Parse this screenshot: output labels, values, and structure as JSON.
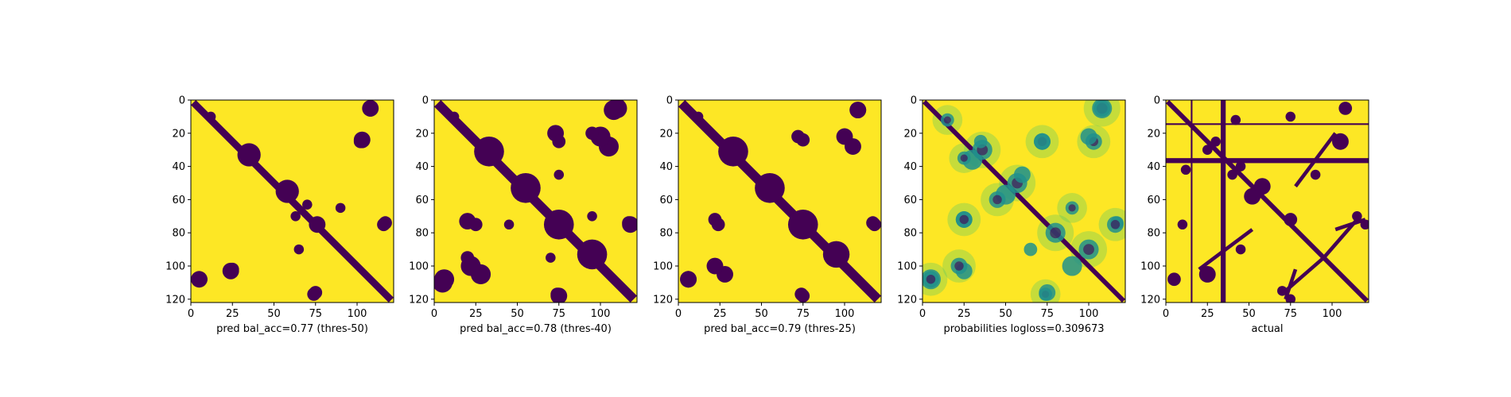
{
  "colors": {
    "low": "#440154",
    "high": "#fde725",
    "mid_teal": "#21918c",
    "mid_green": "#5ec962",
    "frame": "#000000"
  },
  "chart_data": [
    {
      "type": "heatmap",
      "colormap": "viridis",
      "xlabel": "pred bal_acc=0.77 (thres-50)",
      "xticks": [
        0,
        25,
        50,
        75,
        100
      ],
      "yticks": [
        0,
        20,
        40,
        60,
        80,
        100,
        120
      ],
      "xlim": [
        0,
        122
      ],
      "ylim": [
        122,
        0
      ],
      "matrix_size": 122,
      "diagonal_band_halfwidth": 3,
      "blobs": [
        {
          "x": 35,
          "y": 33,
          "r": 7
        },
        {
          "x": 58,
          "y": 55,
          "r": 7
        },
        {
          "x": 76,
          "y": 75,
          "r": 5
        },
        {
          "x": 108,
          "y": 5,
          "r": 5
        },
        {
          "x": 103,
          "y": 24,
          "r": 5
        },
        {
          "x": 25,
          "y": 102,
          "r": 4
        },
        {
          "x": 6,
          "y": 108,
          "r": 4
        },
        {
          "x": 74,
          "y": 117,
          "r": 4
        },
        {
          "x": 116,
          "y": 75,
          "r": 4
        },
        {
          "x": 90,
          "y": 65,
          "r": 3
        },
        {
          "x": 12,
          "y": 10,
          "r": 3
        },
        {
          "x": 70,
          "y": 63,
          "r": 3
        }
      ]
    },
    {
      "type": "heatmap",
      "colormap": "viridis",
      "xlabel": "pred bal_acc=0.78 (thres-40)",
      "xticks": [
        0,
        25,
        50,
        75,
        100
      ],
      "yticks": [
        0,
        20,
        40,
        60,
        80,
        100,
        120
      ],
      "xlim": [
        0,
        122
      ],
      "ylim": [
        122,
        0
      ],
      "matrix_size": 122,
      "diagonal_band_halfwidth": 4,
      "blobs": [
        {
          "x": 33,
          "y": 31,
          "r": 9
        },
        {
          "x": 55,
          "y": 53,
          "r": 9
        },
        {
          "x": 75,
          "y": 75,
          "r": 9
        },
        {
          "x": 95,
          "y": 93,
          "r": 9
        },
        {
          "x": 108,
          "y": 6,
          "r": 6
        },
        {
          "x": 105,
          "y": 28,
          "r": 6
        },
        {
          "x": 22,
          "y": 100,
          "r": 6
        },
        {
          "x": 5,
          "y": 110,
          "r": 6
        },
        {
          "x": 74,
          "y": 117,
          "r": 4
        },
        {
          "x": 118,
          "y": 75,
          "r": 5
        },
        {
          "x": 73,
          "y": 20,
          "r": 5
        },
        {
          "x": 95,
          "y": 20,
          "r": 4
        },
        {
          "x": 25,
          "y": 75,
          "r": 4
        },
        {
          "x": 75,
          "y": 45,
          "r": 3
        },
        {
          "x": 12,
          "y": 10,
          "r": 3
        },
        {
          "x": 70,
          "y": 95,
          "r": 3
        }
      ]
    },
    {
      "type": "heatmap",
      "colormap": "viridis",
      "xlabel": "pred bal_acc=0.79 (thres-25)",
      "xticks": [
        0,
        25,
        50,
        75,
        100
      ],
      "yticks": [
        0,
        20,
        40,
        60,
        80,
        100,
        120
      ],
      "xlim": [
        0,
        122
      ],
      "ylim": [
        122,
        0
      ],
      "matrix_size": 122,
      "diagonal_band_halfwidth": 4,
      "blobs": [
        {
          "x": 33,
          "y": 31,
          "r": 9
        },
        {
          "x": 55,
          "y": 53,
          "r": 9
        },
        {
          "x": 75,
          "y": 75,
          "r": 9
        },
        {
          "x": 95,
          "y": 93,
          "r": 8
        },
        {
          "x": 108,
          "y": 6,
          "r": 5
        },
        {
          "x": 105,
          "y": 28,
          "r": 5
        },
        {
          "x": 22,
          "y": 100,
          "r": 5
        },
        {
          "x": 6,
          "y": 108,
          "r": 5
        },
        {
          "x": 74,
          "y": 117,
          "r": 4
        },
        {
          "x": 118,
          "y": 75,
          "r": 4
        },
        {
          "x": 72,
          "y": 22,
          "r": 4
        },
        {
          "x": 24,
          "y": 75,
          "r": 4
        },
        {
          "x": 12,
          "y": 10,
          "r": 3
        }
      ]
    },
    {
      "type": "heatmap",
      "colormap": "viridis",
      "xlabel": "probabilities logloss=0.309673",
      "xticks": [
        0,
        25,
        50,
        75,
        100
      ],
      "yticks": [
        0,
        20,
        40,
        60,
        80,
        100,
        120
      ],
      "xlim": [
        0,
        122
      ],
      "ylim": [
        122,
        0
      ],
      "matrix_size": 122,
      "diagonal_band_halfwidth": 2,
      "blobs": [
        {
          "x": 36,
          "y": 30,
          "r": 6
        },
        {
          "x": 57,
          "y": 50,
          "r": 6
        },
        {
          "x": 45,
          "y": 60,
          "r": 5
        },
        {
          "x": 80,
          "y": 80,
          "r": 6
        },
        {
          "x": 100,
          "y": 90,
          "r": 6
        },
        {
          "x": 108,
          "y": 5,
          "r": 6
        },
        {
          "x": 103,
          "y": 25,
          "r": 5
        },
        {
          "x": 22,
          "y": 100,
          "r": 5
        },
        {
          "x": 5,
          "y": 108,
          "r": 5
        },
        {
          "x": 74,
          "y": 117,
          "r": 4
        },
        {
          "x": 116,
          "y": 75,
          "r": 5
        },
        {
          "x": 25,
          "y": 35,
          "r": 4
        },
        {
          "x": 72,
          "y": 25,
          "r": 5
        },
        {
          "x": 25,
          "y": 72,
          "r": 5
        },
        {
          "x": 90,
          "y": 65,
          "r": 4
        },
        {
          "x": 15,
          "y": 12,
          "r": 4
        }
      ]
    },
    {
      "type": "heatmap",
      "colormap": "viridis",
      "xlabel": "actual",
      "xticks": [
        0,
        25,
        50,
        75,
        100
      ],
      "yticks": [
        0,
        20,
        40,
        60,
        80,
        100,
        120
      ],
      "xlim": [
        0,
        122
      ],
      "ylim": [
        122,
        0
      ],
      "matrix_size": 122,
      "diagonal_band_halfwidth": 2,
      "blobs": [
        {
          "x": 52,
          "y": 58,
          "r": 5
        },
        {
          "x": 75,
          "y": 72,
          "r": 4
        },
        {
          "x": 105,
          "y": 25,
          "r": 5
        },
        {
          "x": 108,
          "y": 5,
          "r": 4
        },
        {
          "x": 40,
          "y": 45,
          "r": 3
        },
        {
          "x": 30,
          "y": 25,
          "r": 3
        },
        {
          "x": 5,
          "y": 108,
          "r": 3
        },
        {
          "x": 70,
          "y": 115,
          "r": 3
        },
        {
          "x": 120,
          "y": 75,
          "r": 3
        },
        {
          "x": 75,
          "y": 10,
          "r": 3
        },
        {
          "x": 12,
          "y": 42,
          "r": 3
        },
        {
          "x": 90,
          "y": 45,
          "r": 3
        }
      ],
      "anti_diagonal_arms": [
        {
          "x0": 20,
          "y0": 102,
          "x1": 52,
          "y1": 78
        },
        {
          "x0": 102,
          "y0": 78,
          "x1": 120,
          "y1": 72
        },
        {
          "x0": 72,
          "y0": 115,
          "x1": 95,
          "y1": 95
        }
      ],
      "stripes": {
        "vertical": [
          {
            "at": 15,
            "w": 1
          },
          {
            "at": 33,
            "w": 3
          }
        ],
        "horizontal": [
          {
            "at": 14,
            "w": 1
          },
          {
            "at": 35,
            "w": 3
          }
        ]
      }
    }
  ]
}
